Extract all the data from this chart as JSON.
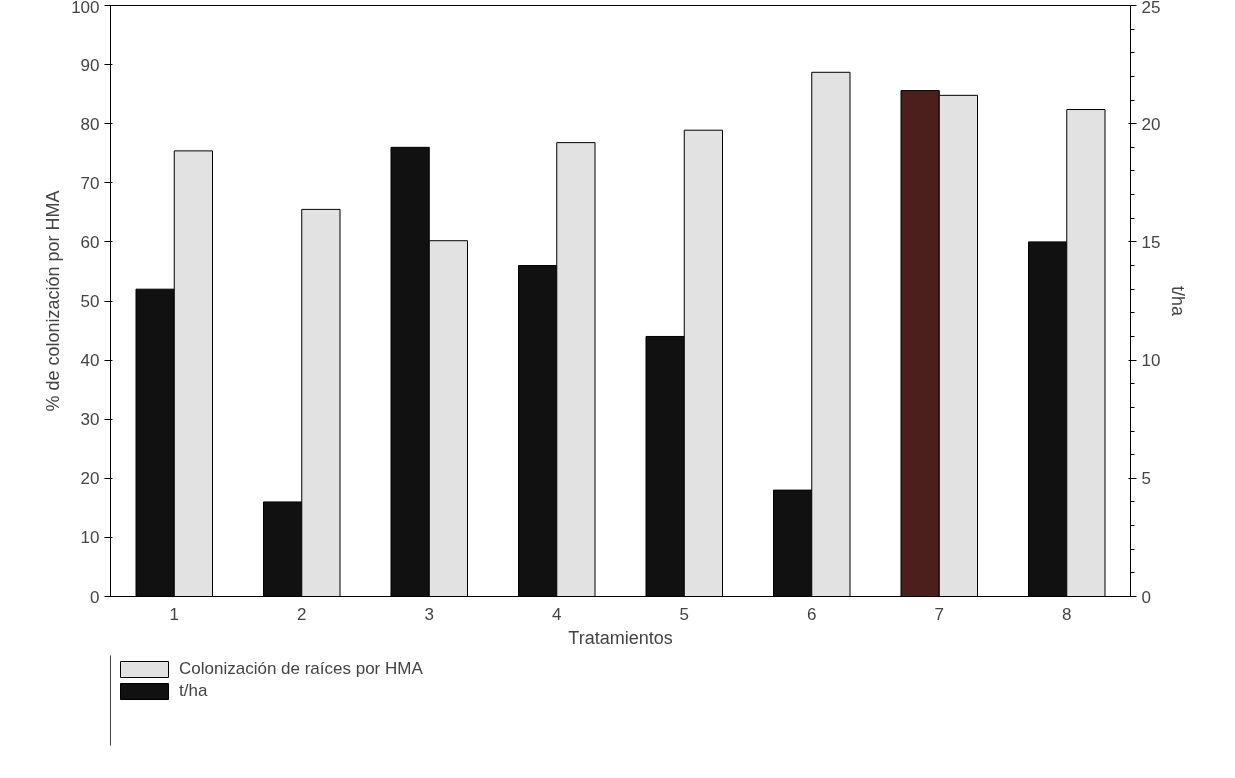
{
  "chart_data": {
    "type": "bar",
    "xlabel": "Tratamientos",
    "ylabel": "% de colonización por HMA",
    "y2label": "t/ha",
    "categories": [
      "1",
      "2",
      "3",
      "4",
      "5",
      "6",
      "7",
      "8"
    ],
    "series": [
      {
        "name": "t/ha",
        "axis": "y2",
        "color": "#111111",
        "colors": [
          "#111111",
          "#111111",
          "#111111",
          "#111111",
          "#111111",
          "#111111",
          "#4a1f1c",
          "#111111"
        ],
        "values": [
          13,
          4,
          19,
          14,
          11,
          4.5,
          21.4,
          15
        ]
      },
      {
        "name": "Colonización de raíces por HMA",
        "color": "#e2e2e2",
        "values": [
          75.4,
          65.5,
          60.2,
          76.8,
          78.9,
          88.7,
          84.8,
          82.4
        ]
      }
    ],
    "ylim": [
      0,
      100
    ],
    "yticks": [
      0,
      10,
      20,
      30,
      40,
      50,
      60,
      70,
      80,
      90,
      100
    ],
    "y2lim": [
      0,
      25
    ],
    "y2ticks": [
      0,
      5,
      10,
      15,
      20,
      25
    ],
    "grid": false,
    "legend": "bottom"
  }
}
